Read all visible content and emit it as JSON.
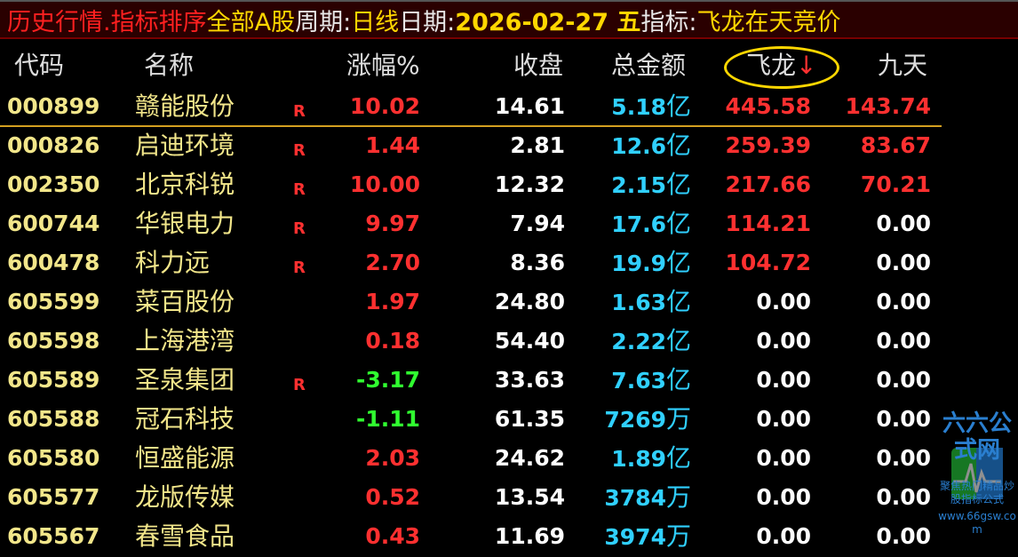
{
  "title": {
    "module": "历史行情.指标排序",
    "market": "全部A股",
    "period_label": "周期:",
    "period": "日线",
    "date_label": "日期:",
    "date": "2026-02-27 五",
    "indicator_label": "指标:",
    "indicator": "飞龙在天竞价"
  },
  "columns": [
    "代码",
    "名称",
    "涨幅%",
    "收盘",
    "总金额",
    "飞龙",
    "九天"
  ],
  "sort_icon": "arrow-down-icon",
  "colors": {
    "up": "#ff3030",
    "down": "#30ff30",
    "amount": "#30d0ff",
    "code": "#f2e68a",
    "highlight_circle": "#ffd700"
  },
  "rows": [
    {
      "code": "000899",
      "name": "赣能股份",
      "r": "R",
      "pct": "10.02",
      "close": "14.61",
      "amt": "5.18",
      "unit": "亿",
      "fl": "445.58",
      "jt": "143.74"
    },
    {
      "code": "000826",
      "name": "启迪环境",
      "r": "R",
      "pct": "1.44",
      "close": "2.81",
      "amt": "12.6",
      "unit": "亿",
      "fl": "259.39",
      "jt": "83.67"
    },
    {
      "code": "002350",
      "name": "北京科锐",
      "r": "R",
      "pct": "10.00",
      "close": "12.32",
      "amt": "2.15",
      "unit": "亿",
      "fl": "217.66",
      "jt": "70.21"
    },
    {
      "code": "600744",
      "name": "华银电力",
      "r": "R",
      "pct": "9.97",
      "close": "7.94",
      "amt": "17.6",
      "unit": "亿",
      "fl": "114.21",
      "jt": "0.00"
    },
    {
      "code": "600478",
      "name": "科力远",
      "r": "R",
      "pct": "2.70",
      "close": "8.36",
      "amt": "19.9",
      "unit": "亿",
      "fl": "104.72",
      "jt": "0.00"
    },
    {
      "code": "605599",
      "name": "菜百股份",
      "r": "",
      "pct": "1.97",
      "close": "24.80",
      "amt": "1.63",
      "unit": "亿",
      "fl": "0.00",
      "jt": "0.00"
    },
    {
      "code": "605598",
      "name": "上海港湾",
      "r": "",
      "pct": "0.18",
      "close": "54.40",
      "amt": "2.22",
      "unit": "亿",
      "fl": "0.00",
      "jt": "0.00"
    },
    {
      "code": "605589",
      "name": "圣泉集团",
      "r": "R",
      "pct": "-3.17",
      "close": "33.63",
      "amt": "7.63",
      "unit": "亿",
      "fl": "0.00",
      "jt": "0.00"
    },
    {
      "code": "605588",
      "name": "冠石科技",
      "r": "",
      "pct": "-1.11",
      "close": "61.35",
      "amt": "7269",
      "unit": "万",
      "fl": "0.00",
      "jt": "0.00"
    },
    {
      "code": "605580",
      "name": "恒盛能源",
      "r": "",
      "pct": "2.03",
      "close": "24.62",
      "amt": "1.89",
      "unit": "亿",
      "fl": "0.00",
      "jt": "0.00"
    },
    {
      "code": "605577",
      "name": "龙版传媒",
      "r": "",
      "pct": "0.52",
      "close": "13.54",
      "amt": "3784",
      "unit": "万",
      "fl": "0.00",
      "jt": "0.00"
    },
    {
      "code": "605567",
      "name": "春雪食品",
      "r": "",
      "pct": "0.43",
      "close": "11.69",
      "amt": "3974",
      "unit": "万",
      "fl": "0.00",
      "jt": "0.00"
    }
  ],
  "watermark": {
    "name": "六六公式网",
    "slogan": "聚焦热门精品炒股指标公式",
    "url": "www.66gsw.com"
  }
}
